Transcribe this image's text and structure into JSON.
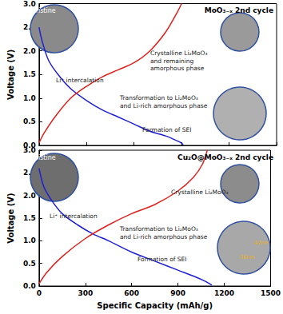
{
  "chart_data": [
    {
      "type": "line",
      "title": "MoO₃₋ₓ 2nd cycle",
      "ylabel": "Voltage (V)",
      "xlim": [
        0,
        1500
      ],
      "xticks": [
        0,
        300,
        600,
        900,
        1200,
        1500
      ],
      "ylim": [
        0,
        3
      ],
      "yticks": [
        {
          "value": 0,
          "label": "0.0"
        },
        {
          "value": 0.5,
          "label": "0.5"
        },
        {
          "value": 1,
          "label": "1.0"
        },
        {
          "value": 1.5,
          "label": "1.5"
        },
        {
          "value": 2,
          "label": "2.0"
        },
        {
          "value": 2.5,
          "label": "2.5"
        },
        {
          "value": 3,
          "label": "3.0"
        }
      ],
      "grid": false,
      "tick_labels": "y",
      "series": [
        {
          "color": "#1f1fd6",
          "x": [
            0,
            20,
            60,
            120,
            200,
            300,
            400,
            500,
            600,
            700,
            800,
            870,
            900,
            910
          ],
          "values": [
            2.5,
            2.2,
            1.8,
            1.5,
            1.2,
            0.95,
            0.75,
            0.6,
            0.45,
            0.3,
            0.2,
            0.1,
            0.05,
            0.01
          ]
        },
        {
          "color": "#e0201c",
          "x": [
            0,
            30,
            100,
            200,
            300,
            400,
            500,
            600,
            700,
            800,
            870,
            900
          ],
          "values": [
            0.05,
            0.25,
            0.6,
            1.0,
            1.25,
            1.45,
            1.6,
            1.75,
            2.0,
            2.4,
            2.8,
            3.0
          ]
        }
      ],
      "annotations": [
        {
          "text": "Pristine"
        },
        {
          "text": "Crystalline Li₂MoO₃\nand remaining\namorphous phase"
        },
        {
          "text": "Li⁺ intercalation"
        },
        {
          "text": "Transformation to Li₂MoO₃\nand Li-rich amorphous phase"
        },
        {
          "text": "Formation of SEI"
        }
      ]
    },
    {
      "type": "line",
      "title": "Cu₂O@MoO₃₋ₓ 2nd cycle",
      "xlabel": "Specific Capacity (mAh/g)",
      "ylabel": "Voltage (V)",
      "xlim": [
        0,
        1500
      ],
      "xticks": [
        0,
        300,
        600,
        900,
        1200,
        1500
      ],
      "ylim": [
        0,
        3
      ],
      "yticks": [
        {
          "value": 0,
          "label": "0.0"
        },
        {
          "value": 0.5,
          "label": "0.5"
        },
        {
          "value": 1,
          "label": "1.0"
        },
        {
          "value": 1.5,
          "label": "1.5"
        },
        {
          "value": 2,
          "label": "2.0"
        },
        {
          "value": 2.5,
          "label": "2.5"
        },
        {
          "value": 3,
          "label": "3.0"
        }
      ],
      "grid": false,
      "series": [
        {
          "color": "#1f1fd6",
          "x": [
            0,
            30,
            80,
            150,
            250,
            350,
            450,
            600,
            750,
            900,
            1000,
            1080,
            1120
          ],
          "values": [
            2.6,
            2.2,
            1.9,
            1.6,
            1.35,
            1.15,
            1.0,
            0.75,
            0.55,
            0.35,
            0.22,
            0.1,
            0.02
          ]
        },
        {
          "color": "#e0201c",
          "x": [
            0,
            50,
            150,
            300,
            450,
            600,
            750,
            900,
            1000,
            1060,
            1090
          ],
          "values": [
            0.05,
            0.3,
            0.65,
            1.05,
            1.35,
            1.6,
            1.8,
            2.1,
            2.4,
            2.7,
            3.0
          ]
        }
      ],
      "annotations": [
        {
          "text": "Pristine"
        },
        {
          "text": "Crystalline Li₂MoO₃"
        },
        {
          "text": "Li⁺ intercalation"
        },
        {
          "text": "Transformation to Li₂MoO₃\nand Li-rich amorphous phase"
        },
        {
          "text": "Formation of SEI"
        },
        {
          "text": "42nm"
        },
        {
          "text": "30nm"
        }
      ]
    }
  ]
}
